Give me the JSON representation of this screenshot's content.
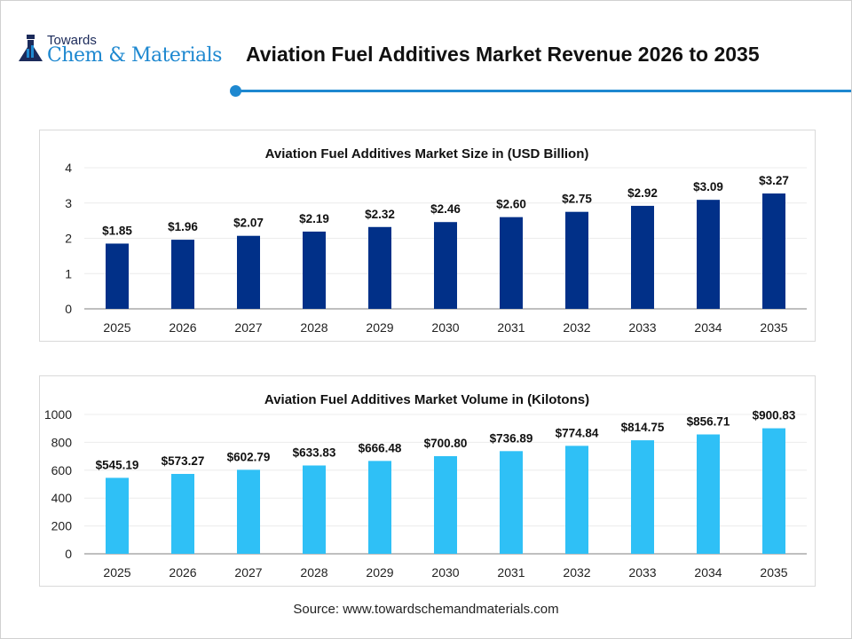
{
  "header": {
    "logo_line1": "Towards",
    "logo_line2": "Chem & Materials",
    "title": "Aviation Fuel Additives Market Revenue 2026 to 2035"
  },
  "colors": {
    "accent": "#1e88d0",
    "series1": "#013088",
    "series2": "#2fc0f6"
  },
  "chart_data": [
    {
      "type": "bar",
      "title": "Aviation Fuel Additives Market Size in (USD Billion)",
      "categories": [
        "2025",
        "2026",
        "2027",
        "2028",
        "2029",
        "2030",
        "2031",
        "2032",
        "2033",
        "2034",
        "2035"
      ],
      "values": [
        1.85,
        1.96,
        2.07,
        2.19,
        2.32,
        2.46,
        2.6,
        2.75,
        2.92,
        3.09,
        3.27
      ],
      "data_labels": [
        "$1.85",
        "$1.96",
        "$2.07",
        "$2.19",
        "$2.32",
        "$2.46",
        "$2.60",
        "$2.75",
        "$2.92",
        "$3.09",
        "$3.27"
      ],
      "ylim": [
        0,
        4
      ],
      "yticks": [
        "0",
        "1",
        "2",
        "3",
        "4"
      ],
      "grid": true,
      "color": "#013088"
    },
    {
      "type": "bar",
      "title": "Aviation Fuel Additives Market Volume in (Kilotons)",
      "categories": [
        "2025",
        "2026",
        "2027",
        "2028",
        "2029",
        "2030",
        "2031",
        "2032",
        "2033",
        "2034",
        "2035"
      ],
      "values": [
        545.19,
        573.27,
        602.79,
        633.83,
        666.48,
        700.8,
        736.89,
        774.84,
        814.75,
        856.71,
        900.83
      ],
      "data_labels": [
        "$545.19",
        "$573.27",
        "$602.79",
        "$633.83",
        "$666.48",
        "$700.80",
        "$736.89",
        "$774.84",
        "$814.75",
        "$856.71",
        "$900.83"
      ],
      "ylim": [
        0,
        1000
      ],
      "yticks": [
        "0",
        "200",
        "400",
        "600",
        "800",
        "1000"
      ],
      "grid": true,
      "color": "#2fc0f6"
    }
  ],
  "footer": {
    "source": "Source: www.towardschemandmaterials.com"
  }
}
